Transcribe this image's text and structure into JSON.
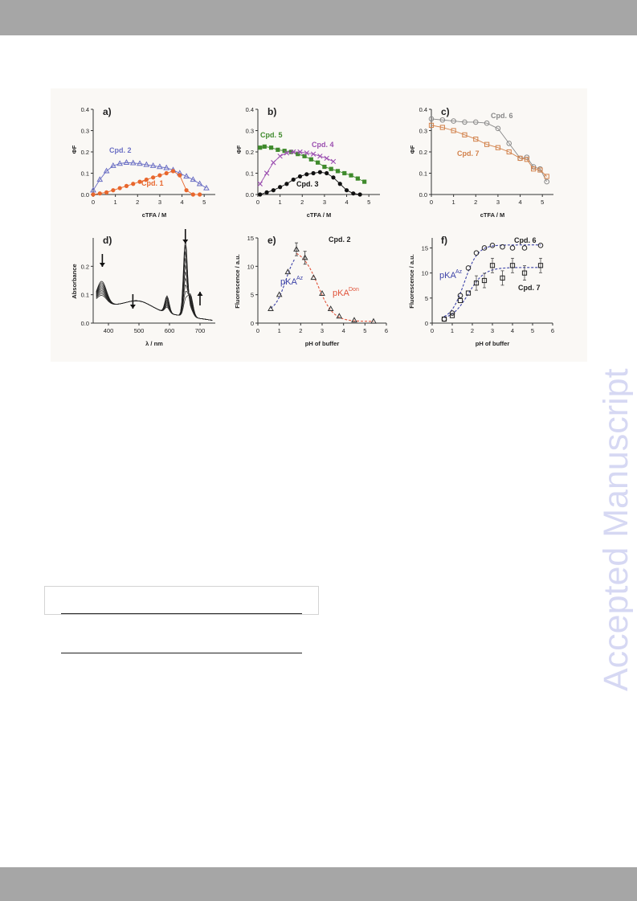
{
  "watermark": "Accepted Manuscript",
  "panels": {
    "a": {
      "label": "a)",
      "ylabel": "ΦF",
      "xlabel": "cTFA / M",
      "series_labels": [
        "Cpd. 2",
        "Cpd. 1"
      ]
    },
    "b": {
      "label": "b)",
      "ylabel": "ΦF",
      "xlabel": "cTFA / M",
      "series_labels": [
        "Cpd. 5",
        "Cpd. 4",
        "Cpd. 3"
      ]
    },
    "c": {
      "label": "c)",
      "ylabel": "ΦF",
      "xlabel": "cTFA / M",
      "series_labels": [
        "Cpd. 6",
        "Cpd. 7"
      ]
    },
    "d": {
      "label": "d)",
      "ylabel": "Absorbance",
      "xlabel": "λ / nm"
    },
    "e": {
      "label": "e)",
      "title": "Cpd. 2",
      "ylabel": "Fluorescence / a.u.",
      "xlabel": "pH of buffer",
      "annotations": [
        "pKA",
        "Az",
        "pKA",
        "Don"
      ]
    },
    "f": {
      "label": "f)",
      "ylabel": "Fluorescence / a.u.",
      "xlabel": "pH of buffer",
      "series_labels": [
        "Cpd. 6",
        "Cpd. 7"
      ],
      "annotations": [
        "pKA",
        "Az"
      ]
    }
  },
  "colors": {
    "cpd1": "#e8672d",
    "cpd2": "#6b6fc4",
    "cpd3": "#111111",
    "cpd4": "#9b4fb0",
    "cpd5": "#3f8a2c",
    "cpd6": "#888888",
    "cpd7": "#d2814a",
    "blue_dash": "#3d43a8",
    "red_dash": "#e0533a"
  },
  "chart_data": [
    {
      "type": "line",
      "panel": "a",
      "xlim": [
        0,
        5.5
      ],
      "ylim": [
        0,
        0.4
      ],
      "xticks": [
        "0",
        "1",
        "2",
        "3",
        "4",
        "5"
      ],
      "yticks": [
        "0.0",
        "0.1",
        "0.2",
        "0.3",
        "0.4"
      ],
      "series": [
        {
          "name": "Cpd. 2",
          "x": [
            0,
            0.3,
            0.6,
            0.9,
            1.2,
            1.5,
            1.8,
            2.1,
            2.4,
            2.7,
            3.0,
            3.3,
            3.6,
            3.9,
            4.2,
            4.5,
            4.8,
            5.1
          ],
          "y": [
            0.02,
            0.07,
            0.11,
            0.135,
            0.145,
            0.15,
            0.148,
            0.145,
            0.14,
            0.135,
            0.13,
            0.125,
            0.115,
            0.1,
            0.085,
            0.07,
            0.05,
            0.03
          ]
        },
        {
          "name": "Cpd. 1",
          "x": [
            0,
            0.3,
            0.6,
            0.9,
            1.2,
            1.5,
            1.8,
            2.1,
            2.4,
            2.7,
            3.0,
            3.3,
            3.6,
            3.9,
            4.2,
            4.5,
            4.8
          ],
          "y": [
            0,
            0.005,
            0.01,
            0.02,
            0.03,
            0.04,
            0.05,
            0.06,
            0.07,
            0.08,
            0.09,
            0.1,
            0.11,
            0.09,
            0.02,
            0.0,
            0.0
          ]
        }
      ]
    },
    {
      "type": "line",
      "panel": "b",
      "xlim": [
        0,
        5.5
      ],
      "ylim": [
        0,
        0.4
      ],
      "xticks": [
        "0",
        "1",
        "2",
        "3",
        "4",
        "5"
      ],
      "yticks": [
        "0.0",
        "0.1",
        "0.2",
        "0.3",
        "0.4"
      ],
      "series": [
        {
          "name": "Cpd. 5",
          "x": [
            0.1,
            0.3,
            0.6,
            0.9,
            1.2,
            1.5,
            1.8,
            2.1,
            2.4,
            2.7,
            3.0,
            3.3,
            3.6,
            3.9,
            4.2,
            4.5,
            4.8
          ],
          "y": [
            0.22,
            0.225,
            0.22,
            0.21,
            0.205,
            0.2,
            0.19,
            0.18,
            0.165,
            0.15,
            0.13,
            0.12,
            0.11,
            0.1,
            0.09,
            0.075,
            0.06
          ]
        },
        {
          "name": "Cpd. 4",
          "x": [
            0.1,
            0.4,
            0.7,
            1.0,
            1.3,
            1.6,
            1.9,
            2.2,
            2.5,
            2.8,
            3.1,
            3.4
          ],
          "y": [
            0.05,
            0.1,
            0.15,
            0.18,
            0.195,
            0.2,
            0.2,
            0.195,
            0.19,
            0.18,
            0.17,
            0.155
          ]
        },
        {
          "name": "Cpd. 3",
          "x": [
            0.1,
            0.4,
            0.7,
            1.0,
            1.3,
            1.6,
            1.9,
            2.2,
            2.5,
            2.8,
            3.1,
            3.4,
            3.7,
            4.0,
            4.3,
            4.6
          ],
          "y": [
            0.0,
            0.01,
            0.02,
            0.035,
            0.05,
            0.07,
            0.085,
            0.095,
            0.1,
            0.105,
            0.1,
            0.08,
            0.05,
            0.02,
            0.005,
            0.0
          ]
        }
      ]
    },
    {
      "type": "line",
      "panel": "c",
      "xlim": [
        0,
        5.5
      ],
      "ylim": [
        0,
        0.4
      ],
      "xticks": [
        "0",
        "1",
        "2",
        "3",
        "4",
        "5"
      ],
      "yticks": [
        "0.0",
        "0.1",
        "0.2",
        "0.3",
        "0.4"
      ],
      "series": [
        {
          "name": "Cpd. 6",
          "x": [
            0,
            0.5,
            1.0,
            1.5,
            2.0,
            2.5,
            3.0,
            3.5,
            4.0,
            4.3,
            4.6,
            4.9,
            5.2
          ],
          "y": [
            0.355,
            0.35,
            0.345,
            0.34,
            0.34,
            0.335,
            0.31,
            0.24,
            0.17,
            0.175,
            0.13,
            0.12,
            0.06
          ]
        },
        {
          "name": "Cpd. 7",
          "x": [
            0,
            0.5,
            1.0,
            1.5,
            2.0,
            2.5,
            3.0,
            3.5,
            4.0,
            4.3,
            4.6,
            4.9,
            5.2
          ],
          "y": [
            0.325,
            0.315,
            0.3,
            0.28,
            0.26,
            0.235,
            0.22,
            0.2,
            0.17,
            0.165,
            0.12,
            0.115,
            0.085
          ]
        }
      ]
    },
    {
      "type": "line",
      "panel": "d",
      "xlim": [
        350,
        750
      ],
      "ylim": [
        0,
        0.3
      ],
      "xticks": [
        "400",
        "500",
        "600",
        "700"
      ],
      "yticks": [
        "0.0",
        "0.1",
        "0.2"
      ]
    },
    {
      "type": "scatter",
      "panel": "e",
      "xlim": [
        0,
        6
      ],
      "ylim": [
        0,
        15
      ],
      "xticks": [
        "0",
        "1",
        "2",
        "3",
        "4",
        "5",
        "6"
      ],
      "yticks": [
        "0",
        "5",
        "10",
        "15"
      ],
      "series": [
        {
          "name": "Cpd. 2",
          "x": [
            0.6,
            1.0,
            1.4,
            1.8,
            2.2,
            2.6,
            3.0,
            3.4,
            3.8,
            4.5,
            5.4
          ],
          "y": [
            2.5,
            5.0,
            9.0,
            13.0,
            11.5,
            8.0,
            5.2,
            2.5,
            1.2,
            0.5,
            0.3
          ]
        }
      ]
    },
    {
      "type": "scatter",
      "panel": "f",
      "xlim": [
        0,
        6
      ],
      "ylim": [
        0,
        17
      ],
      "xticks": [
        "0",
        "1",
        "2",
        "3",
        "4",
        "5",
        "6"
      ],
      "yticks": [
        "0",
        "5",
        "10",
        "15"
      ],
      "series": [
        {
          "name": "Cpd. 6",
          "x": [
            0.6,
            1.0,
            1.4,
            1.8,
            2.2,
            2.6,
            3.0,
            3.5,
            4.0,
            4.6,
            5.4
          ],
          "y": [
            0.8,
            2.0,
            5.5,
            11.0,
            14.0,
            15.0,
            15.5,
            15.2,
            15.0,
            15.0,
            15.5
          ]
        },
        {
          "name": "Cpd. 7",
          "x": [
            0.6,
            1.0,
            1.4,
            1.8,
            2.2,
            2.6,
            3.0,
            3.5,
            4.0,
            4.6,
            5.4
          ],
          "y": [
            0.8,
            1.5,
            4.5,
            6.0,
            8.0,
            8.5,
            11.5,
            9.0,
            11.5,
            10.0,
            11.5
          ]
        }
      ]
    }
  ]
}
